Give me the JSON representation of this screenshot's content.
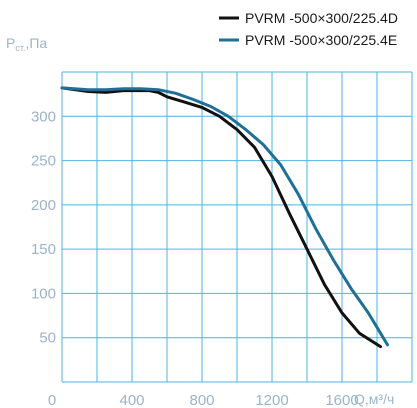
{
  "chart_data": {
    "type": "line",
    "xlabel": "Q,м³/ч",
    "ylabel": "Pст.,Па",
    "ylabel_main": "P",
    "ylabel_sub": "ст.",
    "ylabel_unit": ",Па",
    "xlim": [
      0,
      2000
    ],
    "ylim": [
      0,
      350
    ],
    "xticks": [
      0,
      400,
      800,
      1200,
      1600
    ],
    "yticks": [
      50,
      100,
      150,
      200,
      250,
      300
    ],
    "grid": true,
    "legend_position": "top-right",
    "series": [
      {
        "name": "PVRM -500×300/225.4D",
        "color": "#111111",
        "points": [
          [
            0,
            332
          ],
          [
            150,
            328
          ],
          [
            250,
            327
          ],
          [
            350,
            329
          ],
          [
            500,
            329
          ],
          [
            550,
            327
          ],
          [
            600,
            322
          ],
          [
            700,
            316
          ],
          [
            800,
            310
          ],
          [
            900,
            300
          ],
          [
            1000,
            285
          ],
          [
            1100,
            265
          ],
          [
            1200,
            232
          ],
          [
            1300,
            190
          ],
          [
            1400,
            150
          ],
          [
            1500,
            110
          ],
          [
            1600,
            78
          ],
          [
            1700,
            55
          ],
          [
            1820,
            40
          ]
        ]
      },
      {
        "name": "PVRM -500×300/225.4E",
        "color": "#1f6f96",
        "points": [
          [
            0,
            332
          ],
          [
            150,
            330
          ],
          [
            250,
            330
          ],
          [
            350,
            331
          ],
          [
            450,
            331
          ],
          [
            550,
            330
          ],
          [
            650,
            326
          ],
          [
            750,
            319
          ],
          [
            850,
            311
          ],
          [
            950,
            300
          ],
          [
            1050,
            285
          ],
          [
            1150,
            268
          ],
          [
            1250,
            245
          ],
          [
            1350,
            212
          ],
          [
            1450,
            173
          ],
          [
            1550,
            138
          ],
          [
            1650,
            106
          ],
          [
            1750,
            78
          ],
          [
            1860,
            42
          ]
        ]
      }
    ]
  }
}
